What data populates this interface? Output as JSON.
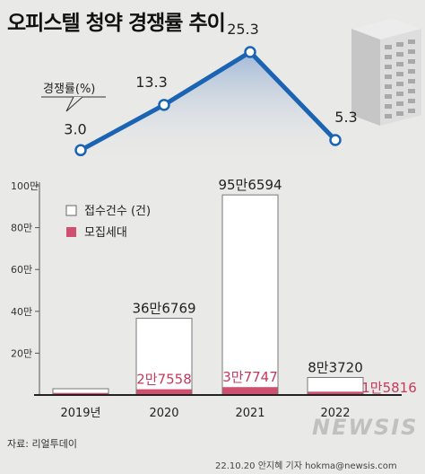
{
  "title": "오피스텔 청약 경쟁률 추이",
  "source": "자료: 리얼투데이",
  "credit": "22.10.20 안지혜 기자 hokma@newsis.com",
  "watermark": "NEWSIS",
  "colors": {
    "line": "#1b64b4",
    "applicant_bar": "#ffffff",
    "unit_bar": "#d14f6e",
    "unit_label": "#c53a5b",
    "text": "#222222"
  },
  "chart_data": [
    {
      "type": "line",
      "ylabel": "경쟁률(%)",
      "categories": [
        "2019년",
        "2020",
        "2021",
        "2022"
      ],
      "values": [
        3.0,
        13.3,
        25.3,
        5.3
      ],
      "value_labels": [
        "3.0",
        "13.3",
        "25.3",
        "5.3"
      ]
    },
    {
      "type": "bar",
      "categories": [
        "2019년",
        "2020",
        "2021",
        "2022"
      ],
      "ylim": [
        0,
        1000000
      ],
      "yticks": [
        200000,
        400000,
        600000,
        800000,
        1000000
      ],
      "ytick_labels": [
        "20만",
        "40만",
        "60만",
        "80만",
        "100만"
      ],
      "series": [
        {
          "name": "접수건수 (건)",
          "values": [
            30000,
            366769,
            956594,
            83720
          ],
          "value_labels": [
            "",
            "36만6769",
            "95만6594",
            "8만3720"
          ]
        },
        {
          "name": "모집세대",
          "values": [
            10000,
            27558,
            37747,
            15816
          ],
          "value_labels": [
            "",
            "2만7558",
            "3만7747",
            "1만5816"
          ]
        }
      ]
    }
  ]
}
